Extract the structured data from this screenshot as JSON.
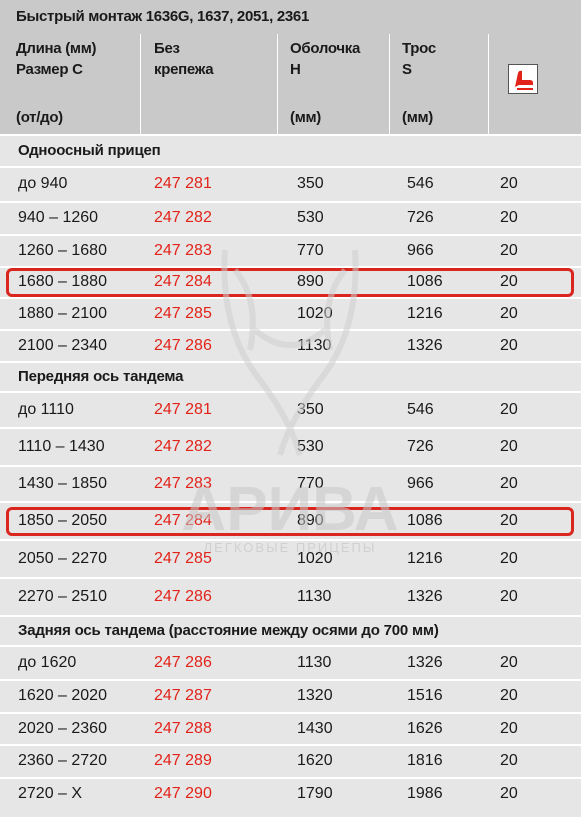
{
  "title": "Быстрый монтаж 1636G, 1637, 2051, 2361",
  "header": {
    "col1": [
      "Длина (мм)",
      "Размер C"
    ],
    "col1_unit": "(от/до)",
    "col2": [
      "Без",
      "крепежа"
    ],
    "col3": [
      "Оболочка",
      "H"
    ],
    "col3_unit": "(мм)",
    "col4": [
      "Трос",
      "S"
    ],
    "col4_unit": "(мм)"
  },
  "icons": {
    "seat": "seat-icon"
  },
  "colors": {
    "part_number": "#e2231a",
    "highlight": "#d9271f",
    "header_bg": "#c9c9c9",
    "row_bg": "#e6e6e6"
  },
  "watermark": {
    "brand": "АРИВА",
    "tagline": "ЛЕГКОВЫЕ ПРИЦЕПЫ"
  },
  "sections": [
    {
      "name": "Одноосный прицеп",
      "rows": [
        {
          "length": "до 940",
          "part": "247 281",
          "h": "350",
          "s": "546",
          "qty": "20"
        },
        {
          "length": "940 – 1260",
          "part": "247 282",
          "h": "530",
          "s": "726",
          "qty": "20"
        },
        {
          "length": "1260 – 1680",
          "part": "247 283",
          "h": "770",
          "s": "966",
          "qty": "20"
        },
        {
          "length": "1680 – 1880",
          "part": "247 284",
          "h": "890",
          "s": "1086",
          "qty": "20",
          "highlight": true
        },
        {
          "length": "1880 – 2100",
          "part": "247 285",
          "h": "1020",
          "s": "1216",
          "qty": "20"
        },
        {
          "length": "2100 – 2340",
          "part": "247 286",
          "h": "1130",
          "s": "1326",
          "qty": "20"
        }
      ]
    },
    {
      "name": "Передняя ось тандема",
      "rows": [
        {
          "length": "до 1110",
          "part": "247 281",
          "h": "350",
          "s": "546",
          "qty": "20"
        },
        {
          "length": "1110 – 1430",
          "part": "247 282",
          "h": "530",
          "s": "726",
          "qty": "20"
        },
        {
          "length": "1430 – 1850",
          "part": "247 283",
          "h": "770",
          "s": "966",
          "qty": "20"
        },
        {
          "length": "1850 – 2050",
          "part": "247 284",
          "h": "890",
          "s": "1086",
          "qty": "20",
          "highlight": true
        },
        {
          "length": "2050 – 2270",
          "part": "247 285",
          "h": "1020",
          "s": "1216",
          "qty": "20"
        },
        {
          "length": "2270 – 2510",
          "part": "247 286",
          "h": "1130",
          "s": "1326",
          "qty": "20"
        }
      ]
    },
    {
      "name": "Задняя ось тандема (расстояние между осями до 700 мм)",
      "rows": [
        {
          "length": "до 1620",
          "part": "247 286",
          "h": "1130",
          "s": "1326",
          "qty": "20"
        },
        {
          "length": "1620 – 2020",
          "part": "247 287",
          "h": "1320",
          "s": "1516",
          "qty": "20"
        },
        {
          "length": "2020 – 2360",
          "part": "247 288",
          "h": "1430",
          "s": "1626",
          "qty": "20"
        },
        {
          "length": "2360 – 2720",
          "part": "247 289",
          "h": "1620",
          "s": "1816",
          "qty": "20"
        },
        {
          "length": "2720 – X",
          "part": "247 290",
          "h": "1790",
          "s": "1986",
          "qty": "20"
        }
      ]
    }
  ]
}
